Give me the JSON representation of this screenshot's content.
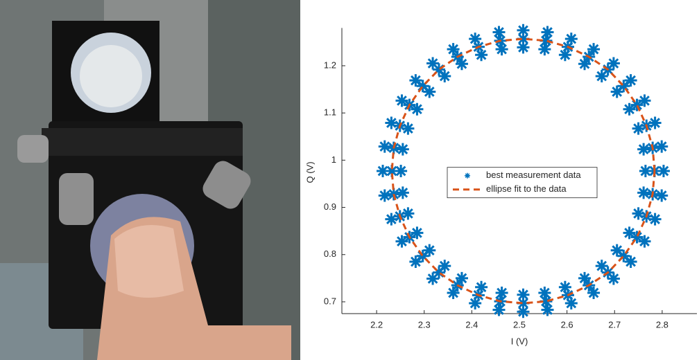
{
  "chart_data": {
    "type": "scatter",
    "xlabel": "I (V)",
    "ylabel": "Q (V)",
    "xlim": [
      2.127,
      2.873
    ],
    "ylim": [
      0.675,
      1.28
    ],
    "xticks": [
      2.2,
      2.3,
      2.4,
      2.5,
      2.6,
      2.7,
      2.8
    ],
    "yticks": [
      0.7,
      0.8,
      0.9,
      1,
      1.1,
      1.2
    ],
    "legend": "center",
    "series": [
      {
        "name": "best measurement data",
        "color": "#0072bd",
        "x": [
          2.803,
          2.799,
          2.785,
          2.763,
          2.734,
          2.698,
          2.656,
          2.609,
          2.559,
          2.508,
          2.457,
          2.407,
          2.361,
          2.318,
          2.282,
          2.253,
          2.231,
          2.217,
          2.213,
          2.217,
          2.231,
          2.253,
          2.282,
          2.318,
          2.361,
          2.407,
          2.457,
          2.508,
          2.559,
          2.609,
          2.656,
          2.698,
          2.734,
          2.763,
          2.785,
          2.799,
          2.765,
          2.761,
          2.75,
          2.731,
          2.705,
          2.673,
          2.637,
          2.596,
          2.553,
          2.508,
          2.463,
          2.42,
          2.379,
          2.343,
          2.311,
          2.285,
          2.266,
          2.255,
          2.251,
          2.255,
          2.266,
          2.285,
          2.311,
          2.343,
          2.379,
          2.42,
          2.463,
          2.508,
          2.553,
          2.596,
          2.637,
          2.673,
          2.705,
          2.731,
          2.75,
          2.761,
          2.784,
          2.78,
          2.767,
          2.747,
          2.719,
          2.686,
          2.646,
          2.602,
          2.556,
          2.508,
          2.46,
          2.414,
          2.37,
          2.331,
          2.297,
          2.269,
          2.249,
          2.236,
          2.232,
          2.236,
          2.249,
          2.269,
          2.297,
          2.331,
          2.37,
          2.414,
          2.46,
          2.508,
          2.556,
          2.602,
          2.646,
          2.686,
          2.719,
          2.747,
          2.767,
          2.78
        ],
        "y": [
          0.977,
          1.029,
          1.079,
          1.126,
          1.169,
          1.205,
          1.235,
          1.257,
          1.271,
          1.275,
          1.271,
          1.257,
          1.235,
          1.205,
          1.169,
          1.126,
          1.079,
          1.029,
          0.977,
          0.925,
          0.875,
          0.828,
          0.785,
          0.749,
          0.719,
          0.697,
          0.683,
          0.679,
          0.683,
          0.697,
          0.719,
          0.749,
          0.785,
          0.828,
          0.875,
          0.925,
          0.977,
          1.023,
          1.067,
          1.108,
          1.145,
          1.178,
          1.204,
          1.223,
          1.235,
          1.239,
          1.235,
          1.223,
          1.204,
          1.178,
          1.145,
          1.108,
          1.067,
          1.023,
          0.977,
          0.931,
          0.887,
          0.846,
          0.809,
          0.776,
          0.75,
          0.731,
          0.719,
          0.715,
          0.719,
          0.731,
          0.75,
          0.776,
          0.809,
          0.846,
          0.887,
          0.931,
          0.977,
          1.026,
          1.073,
          1.117,
          1.157,
          1.192,
          1.219,
          1.24,
          1.253,
          1.257,
          1.253,
          1.24,
          1.219,
          1.192,
          1.157,
          1.117,
          1.073,
          1.026,
          0.977,
          0.928,
          0.881,
          0.837,
          0.797,
          0.762,
          0.735,
          0.714,
          0.701,
          0.697,
          0.701,
          0.714,
          0.735,
          0.762,
          0.797,
          0.837,
          0.881,
          0.928
        ]
      },
      {
        "name": "ellipse fit to the data",
        "color": "#d95319",
        "line_style": "dashed",
        "x": [
          2.784,
          2.78,
          2.767,
          2.747,
          2.719,
          2.686,
          2.646,
          2.602,
          2.556,
          2.508,
          2.46,
          2.414,
          2.37,
          2.331,
          2.297,
          2.269,
          2.249,
          2.236,
          2.232,
          2.236,
          2.249,
          2.269,
          2.297,
          2.331,
          2.37,
          2.414,
          2.46,
          2.508,
          2.556,
          2.602,
          2.646,
          2.686,
          2.719,
          2.747,
          2.767,
          2.78,
          2.784
        ],
        "y": [
          0.977,
          1.026,
          1.073,
          1.117,
          1.157,
          1.192,
          1.219,
          1.24,
          1.253,
          1.257,
          1.253,
          1.24,
          1.219,
          1.192,
          1.157,
          1.117,
          1.073,
          1.026,
          0.977,
          0.928,
          0.881,
          0.837,
          0.797,
          0.762,
          0.735,
          0.714,
          0.701,
          0.697,
          0.701,
          0.714,
          0.735,
          0.762,
          0.797,
          0.837,
          0.881,
          0.928,
          0.977
        ]
      }
    ]
  }
}
